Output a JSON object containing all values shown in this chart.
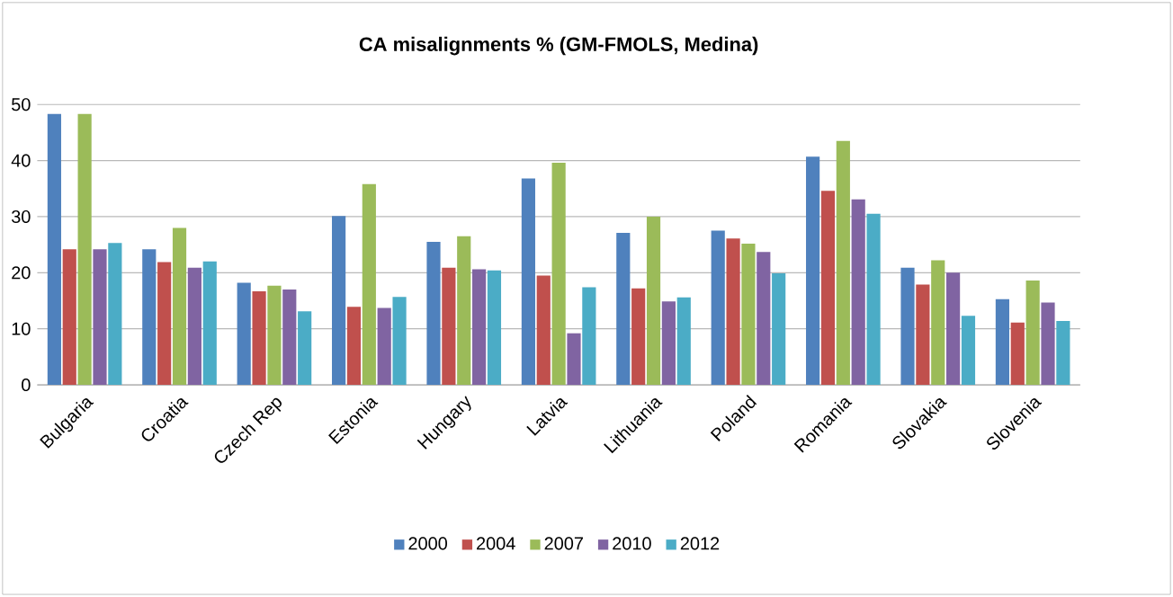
{
  "chart_data": {
    "type": "bar",
    "title": "CA misalignments % (GM-FMOLS, Medina)",
    "categories": [
      "Bulgaria",
      "Croatia",
      "Czech Rep",
      "Estonia",
      "Hungary",
      "Latvia",
      "Lithuania",
      "Poland",
      "Romania",
      "Slovakia",
      "Slovenia"
    ],
    "series": [
      {
        "name": "2000",
        "color": "#4f81bd",
        "values": [
          48.3,
          24.2,
          18.2,
          30.1,
          25.5,
          36.8,
          27.1,
          27.5,
          40.7,
          20.9,
          15.3
        ]
      },
      {
        "name": "2004",
        "color": "#c0504d",
        "values": [
          24.2,
          21.9,
          16.7,
          13.9,
          20.9,
          19.5,
          17.2,
          26.1,
          34.6,
          17.9,
          11.1
        ]
      },
      {
        "name": "2007",
        "color": "#9bbb59",
        "values": [
          48.3,
          28.0,
          17.7,
          35.8,
          26.5,
          39.6,
          30.0,
          25.2,
          43.5,
          22.2,
          18.6
        ]
      },
      {
        "name": "2010",
        "color": "#8064a2",
        "values": [
          24.2,
          20.9,
          17.0,
          13.7,
          20.6,
          9.2,
          14.9,
          23.7,
          33.1,
          20.0,
          14.7
        ]
      },
      {
        "name": "2012",
        "color": "#4bacc6",
        "values": [
          25.3,
          22.0,
          13.1,
          15.7,
          20.4,
          17.4,
          15.6,
          19.9,
          30.5,
          12.3,
          11.4
        ]
      }
    ],
    "ylim": [
      0,
      50
    ],
    "yticks": [
      0,
      10,
      20,
      30,
      40,
      50
    ],
    "grid": "y",
    "legend": "bottom"
  }
}
